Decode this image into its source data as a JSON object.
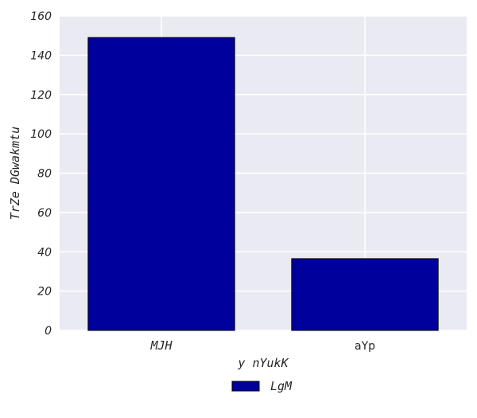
{
  "chart_data": {
    "type": "bar",
    "categories": [
      "MJH",
      "aYp"
    ],
    "series": [
      {
        "name": "LgM",
        "values": [
          149,
          36.5
        ],
        "color": "#00009c"
      }
    ],
    "xlabel": "y nYukK",
    "ylabel": "TrZe DGwakmtu",
    "ylim": [
      0,
      160
    ],
    "yticks": [
      0,
      20,
      40,
      60,
      80,
      100,
      120,
      140,
      160
    ],
    "grid": true,
    "plot_background": "#eaeaf2",
    "grid_color": "#ffffff",
    "legend_position": "bottom-center"
  }
}
